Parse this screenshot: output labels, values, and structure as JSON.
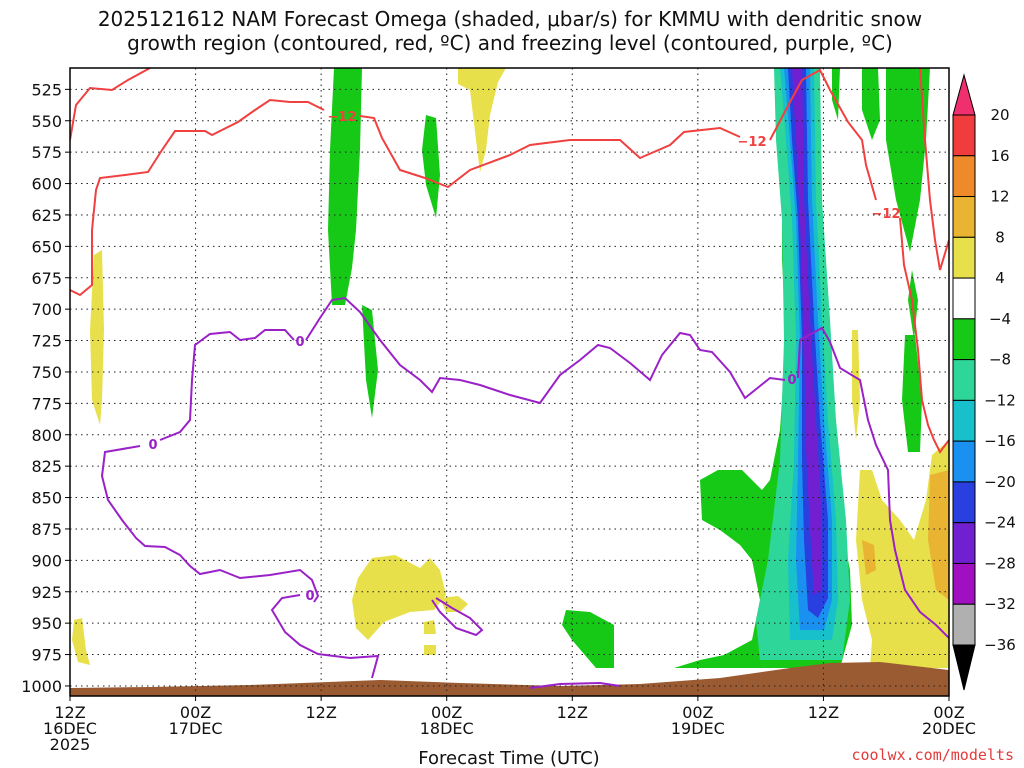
{
  "title_line1": "2025121612 NAM Forecast Omega (shaded, μbar/s) for KMMU with dendritic snow",
  "title_line2": "growth region (contoured, red, ºC) and freezing level (contoured, purple, ºC)",
  "credit": "coolwx.com/modelts",
  "chart_data": {
    "type": "heatmap",
    "xlabel": "Forecast Time (UTC)",
    "y_ticks": [
      525,
      550,
      575,
      600,
      625,
      650,
      675,
      700,
      725,
      750,
      775,
      800,
      825,
      850,
      875,
      900,
      925,
      950,
      975,
      1000
    ],
    "ylim": [
      508,
      1008
    ],
    "x_range_hours": [
      0,
      84
    ],
    "x_ticks": [
      {
        "hour": 0,
        "line1": "12Z",
        "line2": "16DEC",
        "line3": "2025"
      },
      {
        "hour": 12,
        "line1": "00Z",
        "line2": "17DEC",
        "line3": ""
      },
      {
        "hour": 24,
        "line1": "12Z",
        "line2": "",
        "line3": ""
      },
      {
        "hour": 36,
        "line1": "00Z",
        "line2": "18DEC",
        "line3": ""
      },
      {
        "hour": 48,
        "line1": "12Z",
        "line2": "",
        "line3": ""
      },
      {
        "hour": 60,
        "line1": "00Z",
        "line2": "19DEC",
        "line3": ""
      },
      {
        "hour": 72,
        "line1": "12Z",
        "line2": "",
        "line3": ""
      },
      {
        "hour": 84,
        "line1": "00Z",
        "line2": "20DEC",
        "line3": ""
      }
    ],
    "grid": true,
    "colorbar": {
      "labels": [
        "20",
        "16",
        "12",
        "8",
        "4",
        "−4",
        "−8",
        "−12",
        "−16",
        "−20",
        "−24",
        "−28",
        "−32",
        "−36"
      ],
      "colors": [
        "#f0306e",
        "#f03c3c",
        "#ee8a2a",
        "#e8b432",
        "#e8e04a",
        "#ffffff",
        "#16c916",
        "#2ed69a",
        "#18c0cc",
        "#1a90f0",
        "#2a3fe0",
        "#7020d0",
        "#a010c0",
        "#b0b0b0",
        "#000000"
      ]
    },
    "contours": [
      {
        "name": "dendritic snow growth",
        "level": "-12",
        "color": "#f04040"
      },
      {
        "name": "freezing level",
        "level": "0",
        "color": "#9a20c8"
      }
    ],
    "terrain_color": "#9a5a32"
  }
}
